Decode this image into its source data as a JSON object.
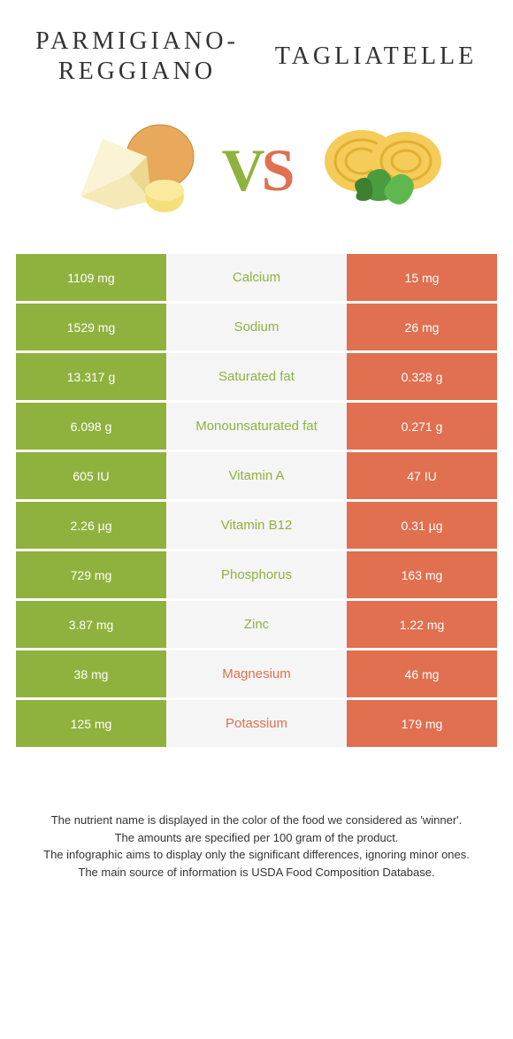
{
  "header": {
    "left_title": "Parmigiano-Reggiano",
    "right_title": "Tagliatelle"
  },
  "vs": {
    "v": "V",
    "s": "S"
  },
  "colors": {
    "left": "#8fb23e",
    "right": "#e07050",
    "mid_bg": "#f5f5f5",
    "mid_text_left": "#8fb23e",
    "mid_text_right": "#e07050"
  },
  "rows": [
    {
      "left": "1109 mg",
      "label": "Calcium",
      "right": "15 mg",
      "winner": "left"
    },
    {
      "left": "1529 mg",
      "label": "Sodium",
      "right": "26 mg",
      "winner": "left"
    },
    {
      "left": "13.317 g",
      "label": "Saturated fat",
      "right": "0.328 g",
      "winner": "left"
    },
    {
      "left": "6.098 g",
      "label": "Monounsaturated fat",
      "right": "0.271 g",
      "winner": "left"
    },
    {
      "left": "605 IU",
      "label": "Vitamin A",
      "right": "47 IU",
      "winner": "left"
    },
    {
      "left": "2.26 µg",
      "label": "Vitamin B12",
      "right": "0.31 µg",
      "winner": "left"
    },
    {
      "left": "729 mg",
      "label": "Phosphorus",
      "right": "163 mg",
      "winner": "left"
    },
    {
      "left": "3.87 mg",
      "label": "Zinc",
      "right": "1.22 mg",
      "winner": "left"
    },
    {
      "left": "38 mg",
      "label": "Magnesium",
      "right": "46 mg",
      "winner": "right"
    },
    {
      "left": "125 mg",
      "label": "Potassium",
      "right": "179 mg",
      "winner": "right"
    }
  ],
  "footnote": {
    "l1": "The nutrient name is displayed in the color of the food we considered as 'winner'.",
    "l2": "The amounts are specified per 100 gram of the product.",
    "l3": "The infographic aims to display only the significant differences, ignoring minor ones.",
    "l4": "The main source of information is USDA Food Composition Database."
  }
}
